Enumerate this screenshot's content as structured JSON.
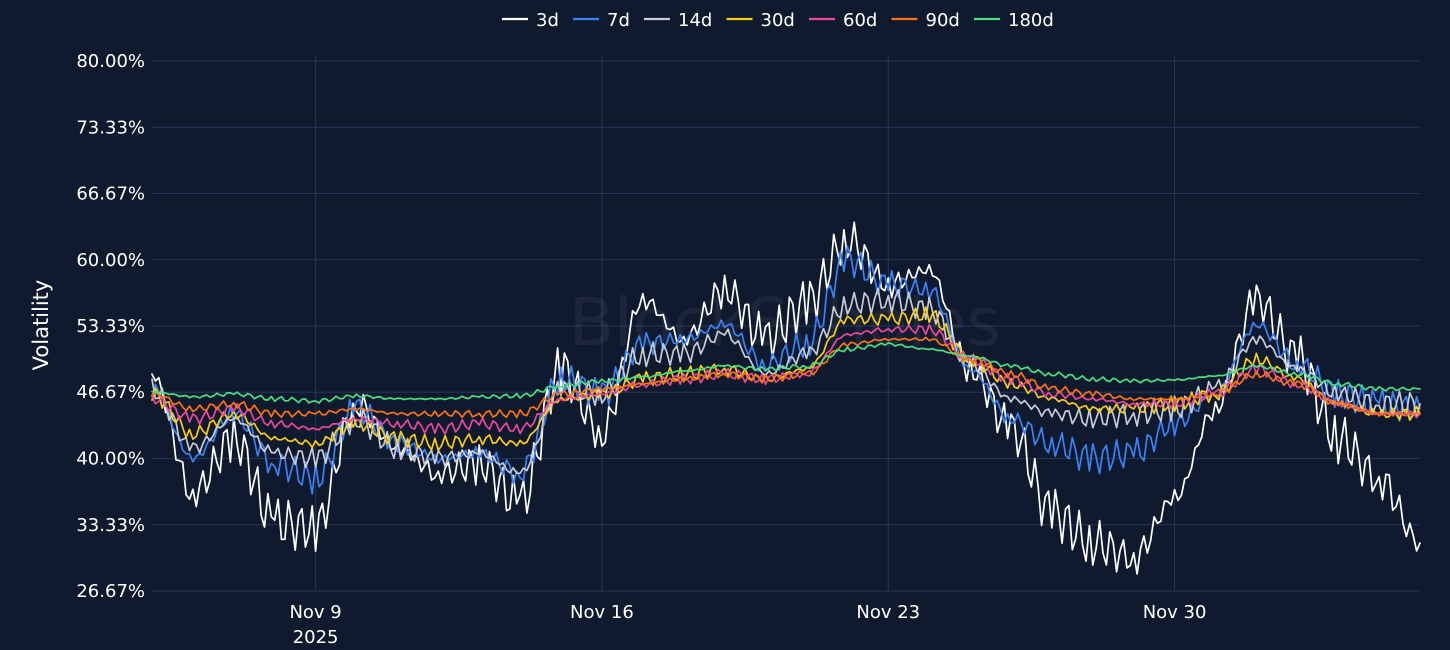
{
  "watermark": "BlockScholes",
  "chart_data": {
    "type": "line",
    "ylabel": "Volatility",
    "xlabel": "",
    "title": "",
    "legend_position": "top-center",
    "grid": true,
    "x_range": [
      "2025-11-05",
      "2025-12-06"
    ],
    "ylim": [
      26.67,
      80.0
    ],
    "y_ticks": [
      "80.00%",
      "73.33%",
      "66.67%",
      "60.00%",
      "53.33%",
      "46.67%",
      "40.00%",
      "33.33%",
      "26.67%"
    ],
    "y_tick_values": [
      80.0,
      73.33,
      66.67,
      60.0,
      53.33,
      46.67,
      40.0,
      33.33,
      26.67
    ],
    "x_ticks": [
      {
        "date": "2025-11-09",
        "label": "Nov 9",
        "sublabel": "2025"
      },
      {
        "date": "2025-11-16",
        "label": "Nov 16",
        "sublabel": ""
      },
      {
        "date": "2025-11-23",
        "label": "Nov 23",
        "sublabel": ""
      },
      {
        "date": "2025-11-30",
        "label": "Nov 30",
        "sublabel": ""
      }
    ],
    "x": [
      "2025-11-05",
      "2025-11-06",
      "2025-11-07",
      "2025-11-08",
      "2025-11-09",
      "2025-11-10",
      "2025-11-11",
      "2025-11-12",
      "2025-11-13",
      "2025-11-14",
      "2025-11-15",
      "2025-11-16",
      "2025-11-17",
      "2025-11-18",
      "2025-11-19",
      "2025-11-20",
      "2025-11-21",
      "2025-11-22",
      "2025-11-23",
      "2025-11-24",
      "2025-11-25",
      "2025-11-26",
      "2025-11-27",
      "2025-11-28",
      "2025-11-29",
      "2025-11-30",
      "2025-12-01",
      "2025-12-02",
      "2025-12-03",
      "2025-12-04",
      "2025-12-05",
      "2025-12-06"
    ],
    "series": [
      {
        "name": "3d",
        "color": "#ffffff",
        "values": [
          48.5,
          36.5,
          42.0,
          33.5,
          33.0,
          45.5,
          41.0,
          38.5,
          39.5,
          35.5,
          49.0,
          42.5,
          56.0,
          52.0,
          57.0,
          52.0,
          55.5,
          62.0,
          57.5,
          59.0,
          49.0,
          43.0,
          34.5,
          31.5,
          30.0,
          36.0,
          45.0,
          56.0,
          50.0,
          42.0,
          38.0,
          31.5
        ]
      },
      {
        "name": "7d",
        "color": "#3b82f6",
        "values": [
          47.0,
          40.0,
          44.5,
          39.5,
          38.0,
          45.0,
          41.5,
          40.0,
          40.5,
          38.5,
          48.0,
          46.5,
          51.5,
          52.0,
          53.5,
          49.5,
          51.5,
          60.0,
          57.5,
          57.0,
          49.0,
          44.0,
          41.5,
          40.0,
          40.5,
          43.5,
          46.5,
          53.5,
          49.5,
          46.5,
          45.5,
          45.0
        ]
      },
      {
        "name": "14d",
        "color": "#c7ccd6",
        "values": [
          47.0,
          41.0,
          44.0,
          40.5,
          40.0,
          44.0,
          41.0,
          40.0,
          40.5,
          38.5,
          47.0,
          46.5,
          50.5,
          50.5,
          52.5,
          48.5,
          50.5,
          55.5,
          56.0,
          55.0,
          49.5,
          46.0,
          44.5,
          44.0,
          44.5,
          45.0,
          47.0,
          52.0,
          49.0,
          46.5,
          45.5,
          45.5
        ]
      },
      {
        "name": "30d",
        "color": "#facc15",
        "values": [
          46.5,
          42.5,
          44.5,
          42.0,
          41.5,
          43.5,
          42.0,
          41.5,
          42.0,
          41.5,
          46.0,
          46.5,
          48.0,
          48.5,
          49.0,
          48.0,
          49.0,
          54.0,
          54.0,
          54.5,
          50.0,
          47.5,
          46.0,
          45.0,
          45.0,
          45.5,
          46.5,
          50.0,
          48.0,
          45.5,
          44.5,
          44.5
        ]
      },
      {
        "name": "60d",
        "color": "#ec4899",
        "values": [
          46.0,
          44.0,
          45.0,
          43.5,
          43.0,
          44.0,
          43.5,
          43.0,
          43.5,
          43.0,
          46.0,
          46.5,
          47.5,
          48.0,
          48.5,
          48.0,
          48.5,
          52.5,
          53.0,
          53.0,
          50.0,
          48.0,
          46.5,
          46.0,
          45.5,
          45.5,
          46.5,
          49.0,
          47.5,
          45.5,
          44.5,
          44.5
        ]
      },
      {
        "name": "90d",
        "color": "#f97316",
        "values": [
          46.5,
          45.0,
          45.5,
          44.5,
          44.5,
          45.0,
          44.5,
          44.5,
          44.5,
          44.5,
          46.5,
          47.0,
          47.5,
          48.0,
          48.5,
          48.0,
          48.5,
          51.5,
          52.0,
          52.0,
          50.0,
          48.5,
          47.0,
          46.5,
          46.0,
          46.0,
          46.5,
          48.5,
          47.5,
          45.5,
          44.5,
          44.5
        ]
      },
      {
        "name": "180d",
        "color": "#4ade80",
        "values": [
          46.7,
          46.2,
          46.5,
          46.0,
          45.8,
          46.3,
          46.0,
          46.0,
          46.2,
          46.3,
          47.3,
          47.8,
          48.2,
          48.8,
          49.3,
          49.0,
          49.3,
          51.0,
          51.5,
          51.0,
          50.3,
          49.3,
          48.5,
          48.0,
          47.8,
          47.9,
          48.3,
          49.3,
          48.5,
          47.5,
          47.0,
          47.0
        ]
      }
    ]
  }
}
